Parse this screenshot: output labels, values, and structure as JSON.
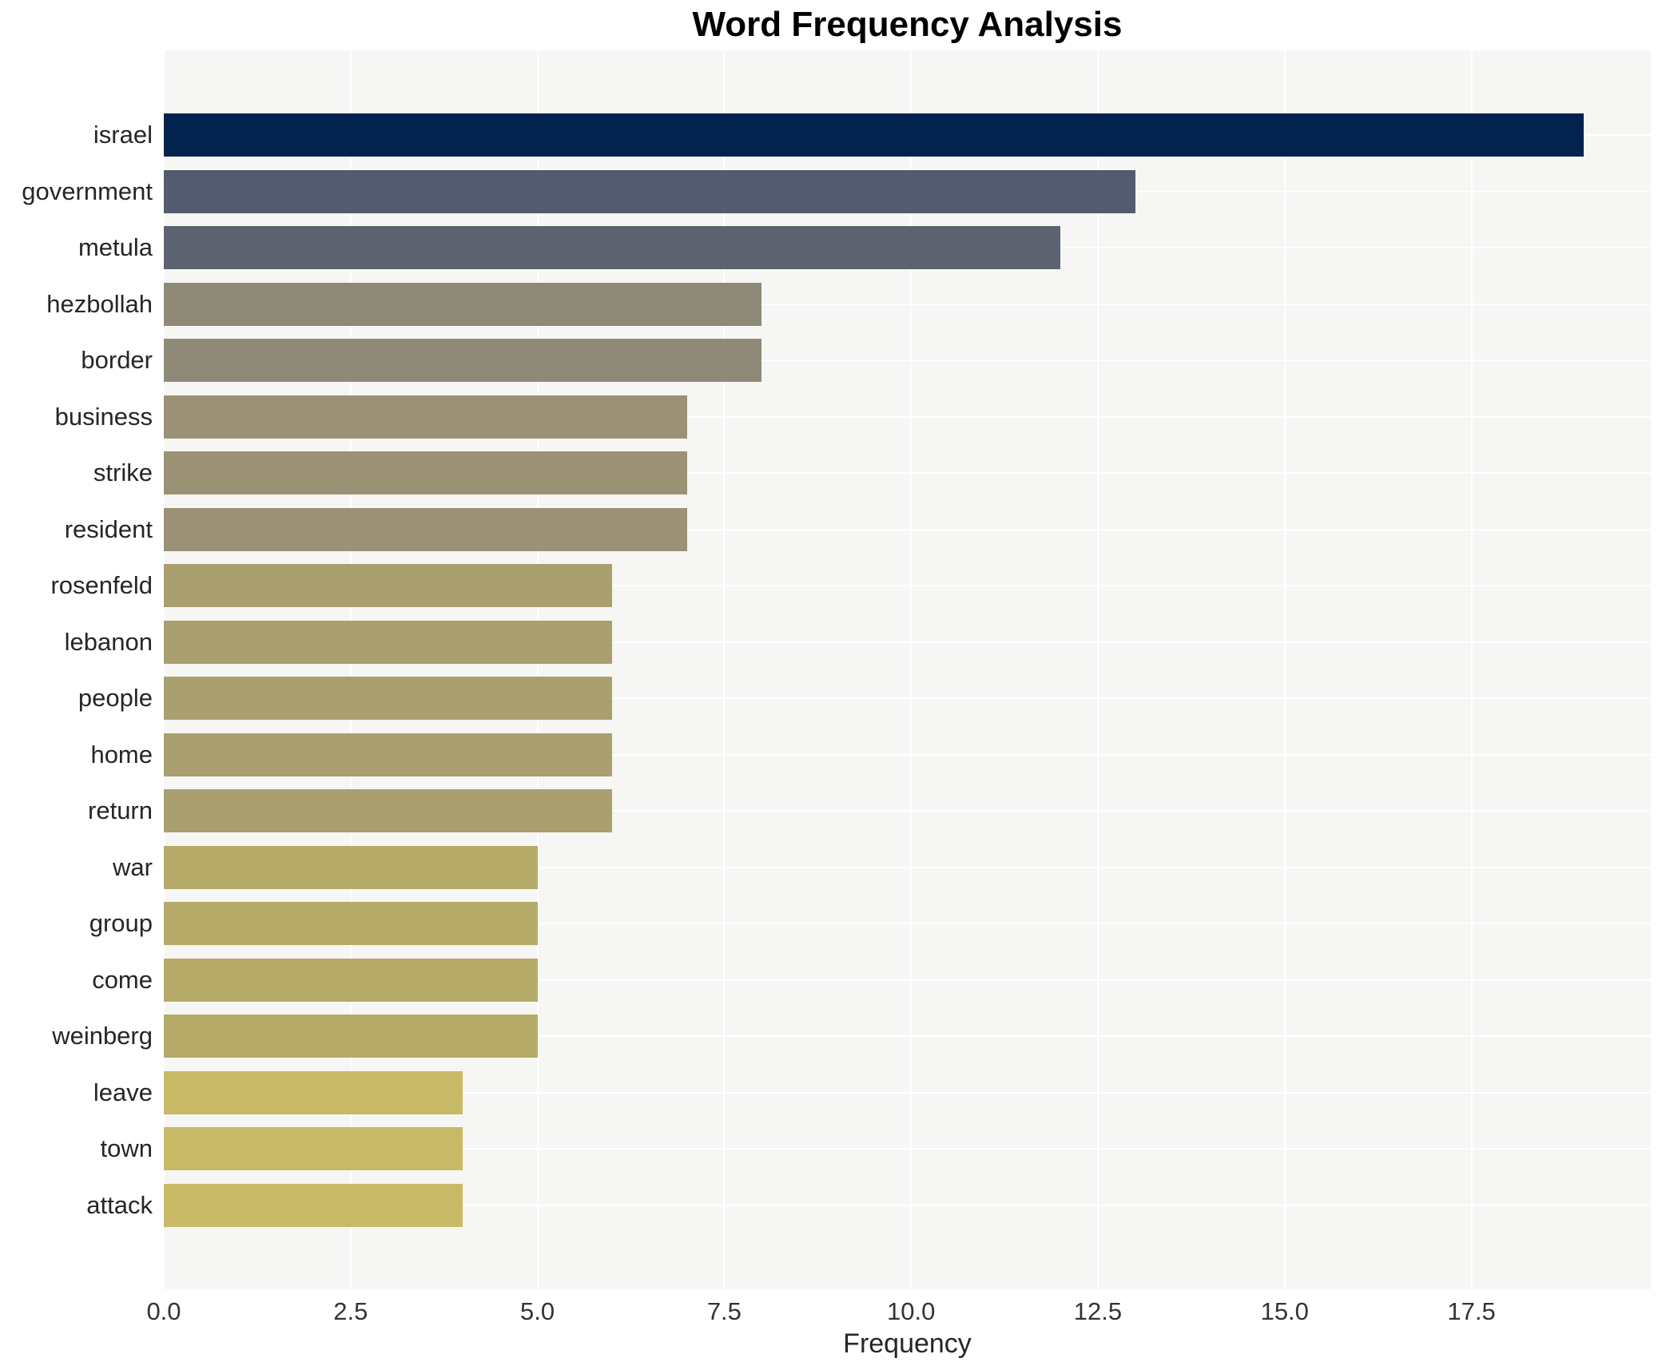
{
  "chart_data": {
    "type": "bar",
    "orientation": "horizontal",
    "title": "Word Frequency Analysis",
    "xlabel": "Frequency",
    "ylabel": "",
    "categories": [
      "israel",
      "government",
      "metula",
      "hezbollah",
      "border",
      "business",
      "strike",
      "resident",
      "rosenfeld",
      "lebanon",
      "people",
      "home",
      "return",
      "war",
      "group",
      "come",
      "weinberg",
      "leave",
      "town",
      "attack"
    ],
    "values": [
      19,
      13,
      12,
      8,
      8,
      7,
      7,
      7,
      6,
      6,
      6,
      6,
      6,
      5,
      5,
      5,
      5,
      4,
      4,
      4
    ],
    "bar_colors": [
      "#01234e",
      "#555b6e",
      "#5d6271",
      "#8f8978",
      "#8f8978",
      "#9b9276",
      "#9b9276",
      "#9b9276",
      "#a99f6f",
      "#a99f6f",
      "#a99f6f",
      "#a99f6f",
      "#a99f6f",
      "#b5aa67",
      "#b5aa67",
      "#b5aa67",
      "#b5aa67",
      "#c7b966",
      "#c7b966",
      "#c7b966"
    ],
    "xlim": [
      0,
      19.9
    ],
    "xticks": [
      0,
      2.5,
      5,
      7.5,
      10,
      12.5,
      15,
      17.5
    ],
    "xtick_labels": [
      "0.0",
      "2.5",
      "5.0",
      "7.5",
      "10.0",
      "12.5",
      "15.0",
      "17.5"
    ],
    "grid": true,
    "grid_color": "#ffffff",
    "plot_background": "#f6f6f4",
    "figure_background": "#ffffff",
    "legend": false
  }
}
